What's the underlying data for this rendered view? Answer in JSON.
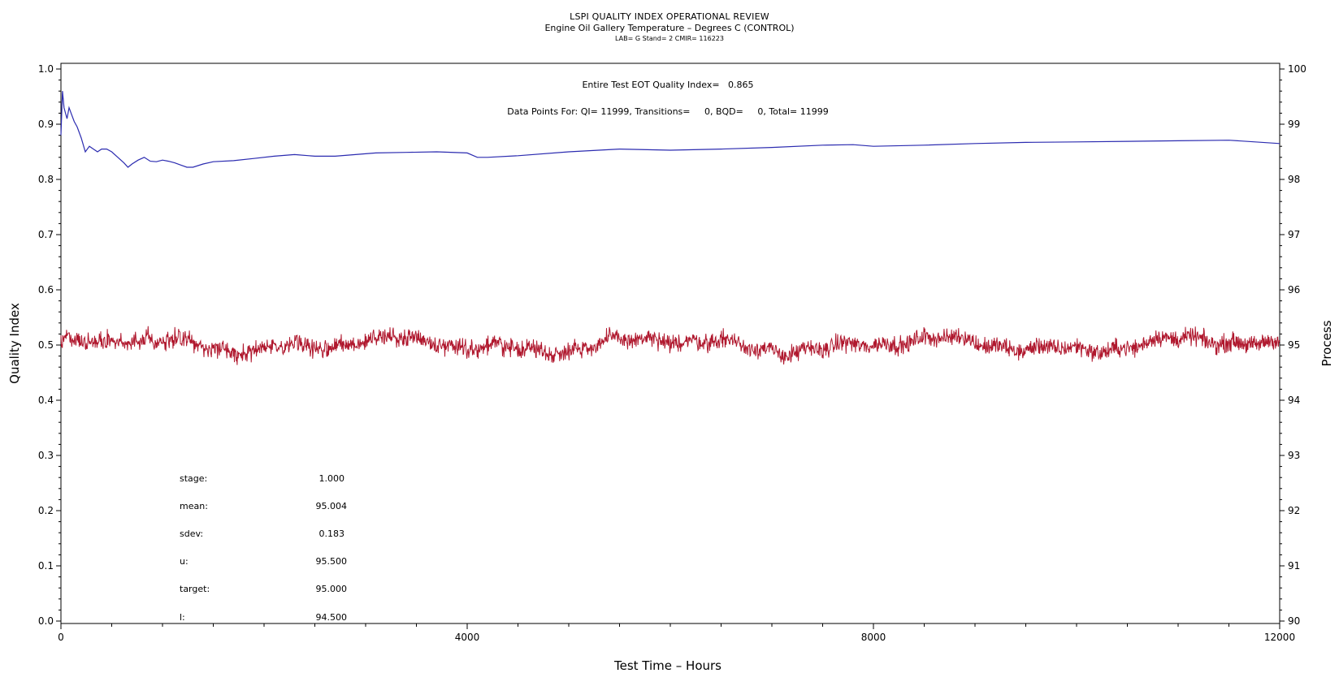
{
  "header": {
    "title": "LSPI QUALITY INDEX OPERATIONAL REVIEW",
    "subtitle": "Engine Oil Gallery Temperature – Degrees C (CONTROL)",
    "info": "LAB= G Stand= 2 CMIR= 116223"
  },
  "annotations": {
    "quality_index": "Entire Test EOT Quality Index=   0.865",
    "data_points": "Data Points For: QI= 11999, Transitions=     0, BQD=     0, Total= 11999"
  },
  "stats": [
    {
      "label": "stage:",
      "value": "1.000"
    },
    {
      "label": "mean:",
      "value": "95.004"
    },
    {
      "label": "sdev:",
      "value": "0.183"
    },
    {
      "label": "u:",
      "value": "95.500"
    },
    {
      "label": "target:",
      "value": "95.000"
    },
    {
      "label": "l:",
      "value": "94.500"
    }
  ],
  "chart_data": {
    "type": "line",
    "title": "LSPI QUALITY INDEX OPERATIONAL REVIEW",
    "xlabel": "Test Time – Hours",
    "ylabel": "Quality Index",
    "y2label": "Process",
    "xlim": [
      0,
      12000
    ],
    "ylim": [
      0.0,
      1.0
    ],
    "y2lim": [
      90,
      100
    ],
    "xticks": [
      "0",
      "4000",
      "8000",
      "12000"
    ],
    "yticks": [
      "0.0",
      "0.1",
      "0.2",
      "0.3",
      "0.4",
      "0.5",
      "0.6",
      "0.7",
      "0.8",
      "0.9",
      "1.0"
    ],
    "y2ticks": [
      "90",
      "91",
      "92",
      "93",
      "94",
      "95",
      "96",
      "97",
      "98",
      "99",
      "100"
    ],
    "series": [
      {
        "axis": "left",
        "color": "#2b2bb0",
        "x": [
          0,
          15,
          30,
          45,
          60,
          80,
          100,
          130,
          160,
          200,
          240,
          280,
          320,
          360,
          400,
          450,
          500,
          560,
          620,
          660,
          700,
          760,
          820,
          880,
          940,
          1000,
          1060,
          1120,
          1180,
          1240,
          1300,
          1400,
          1500,
          1700,
          1900,
          2100,
          2300,
          2500,
          2700,
          2900,
          3100,
          3400,
          3700,
          4000,
          4100,
          4200,
          4500,
          5000,
          5500,
          6000,
          6500,
          7000,
          7500,
          7800,
          8000,
          8500,
          9000,
          9500,
          10000,
          10500,
          11000,
          11500,
          12000
        ],
        "values": [
          0.88,
          0.96,
          0.93,
          0.92,
          0.91,
          0.93,
          0.92,
          0.905,
          0.895,
          0.875,
          0.85,
          0.86,
          0.855,
          0.85,
          0.855,
          0.855,
          0.85,
          0.84,
          0.83,
          0.822,
          0.828,
          0.835,
          0.84,
          0.833,
          0.832,
          0.835,
          0.833,
          0.83,
          0.826,
          0.822,
          0.822,
          0.828,
          0.832,
          0.834,
          0.838,
          0.842,
          0.845,
          0.842,
          0.842,
          0.845,
          0.848,
          0.849,
          0.85,
          0.848,
          0.84,
          0.84,
          0.843,
          0.85,
          0.855,
          0.853,
          0.855,
          0.858,
          0.862,
          0.863,
          0.86,
          0.862,
          0.865,
          0.867,
          0.868,
          0.869,
          0.87,
          0.871,
          0.865
        ]
      },
      {
        "axis": "right",
        "color": "#b0182e",
        "mean": 95.004,
        "sdev": 0.183,
        "x": [
          0,
          12000
        ]
      }
    ]
  },
  "colors": {
    "qi_line": "#2b2bb0",
    "process_line": "#b0182e",
    "axis": "#000000"
  }
}
